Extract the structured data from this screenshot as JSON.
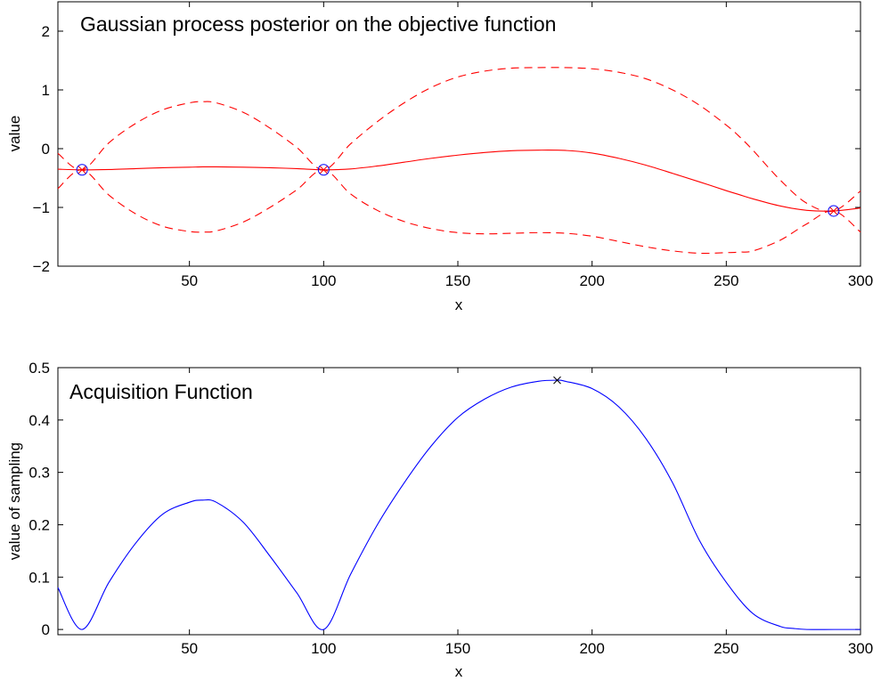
{
  "chart_data": [
    {
      "type": "line",
      "title": "Gaussian process posterior on the objective function",
      "xlabel": "x",
      "ylabel": "value",
      "xlim": [
        1,
        300
      ],
      "ylim": [
        -2,
        2.5
      ],
      "xticks": [
        50,
        100,
        150,
        200,
        250,
        300
      ],
      "yticks": [
        -2,
        -1,
        0,
        1,
        2
      ],
      "grid": false,
      "x": [
        1,
        10,
        20,
        30,
        40,
        50,
        55,
        60,
        70,
        80,
        90,
        100,
        110,
        120,
        130,
        140,
        150,
        160,
        170,
        180,
        190,
        200,
        210,
        220,
        230,
        240,
        250,
        255,
        260,
        270,
        280,
        290,
        300
      ],
      "series": [
        {
          "role": "mean",
          "style": "solid",
          "color": "#ff0000",
          "values": [
            -0.35,
            -0.36,
            -0.355,
            -0.34,
            -0.325,
            -0.315,
            -0.31,
            -0.31,
            -0.315,
            -0.325,
            -0.34,
            -0.36,
            -0.345,
            -0.295,
            -0.23,
            -0.165,
            -0.11,
            -0.065,
            -0.035,
            -0.025,
            -0.03,
            -0.075,
            -0.165,
            -0.28,
            -0.42,
            -0.565,
            -0.715,
            -0.785,
            -0.855,
            -0.975,
            -1.05,
            -1.06,
            -1.01
          ]
        },
        {
          "role": "upper-bound",
          "style": "dashed",
          "color": "#ff0000",
          "values": [
            -0.08,
            -0.36,
            0.1,
            0.43,
            0.66,
            0.78,
            0.8,
            0.78,
            0.62,
            0.35,
            0.02,
            -0.36,
            0.08,
            0.46,
            0.78,
            1.04,
            1.22,
            1.32,
            1.37,
            1.38,
            1.38,
            1.36,
            1.3,
            1.19,
            1.0,
            0.74,
            0.4,
            0.2,
            -0.03,
            -0.53,
            -0.93,
            -1.06,
            -0.72
          ]
        },
        {
          "role": "lower-bound",
          "style": "dashed",
          "color": "#ff0000",
          "values": [
            -0.68,
            -0.36,
            -0.79,
            -1.11,
            -1.32,
            -1.41,
            -1.42,
            -1.4,
            -1.25,
            -1.0,
            -0.7,
            -0.36,
            -0.77,
            -1.05,
            -1.24,
            -1.36,
            -1.43,
            -1.45,
            -1.44,
            -1.43,
            -1.44,
            -1.49,
            -1.58,
            -1.67,
            -1.74,
            -1.78,
            -1.77,
            -1.76,
            -1.74,
            -1.56,
            -1.28,
            -1.06,
            -1.42
          ]
        }
      ],
      "observations": {
        "x": [
          10,
          100,
          290
        ],
        "y": [
          -0.36,
          -0.36,
          -1.06
        ],
        "marker": "circle-cross"
      }
    },
    {
      "type": "line",
      "title": "Acquisition Function",
      "xlabel": "x",
      "ylabel": "value of sampling",
      "xlim": [
        1,
        300
      ],
      "ylim": [
        -0.01,
        0.5
      ],
      "xticks": [
        50,
        100,
        150,
        200,
        250,
        300
      ],
      "yticks": [
        0,
        0.1,
        0.2,
        0.3,
        0.4,
        0.5
      ],
      "ytick_labels": [
        "0",
        "0.1",
        "0.2",
        "0.3",
        "0.4",
        "0.5"
      ],
      "grid": false,
      "x": [
        1,
        10,
        20,
        30,
        40,
        50,
        55,
        60,
        70,
        80,
        90,
        100,
        110,
        120,
        130,
        140,
        150,
        160,
        170,
        180,
        187,
        190,
        200,
        210,
        220,
        230,
        240,
        250,
        260,
        270,
        275,
        280,
        290,
        300
      ],
      "series": [
        {
          "role": "acquisition",
          "style": "solid",
          "color": "#0000ff",
          "values": [
            0.08,
            0.0,
            0.09,
            0.165,
            0.22,
            0.243,
            0.247,
            0.243,
            0.205,
            0.14,
            0.07,
            0.0,
            0.105,
            0.2,
            0.28,
            0.35,
            0.405,
            0.44,
            0.463,
            0.474,
            0.476,
            0.474,
            0.46,
            0.425,
            0.365,
            0.28,
            0.17,
            0.09,
            0.03,
            0.006,
            0.002,
            0.0,
            0.0,
            0.0
          ]
        }
      ],
      "maximum": {
        "x": 187,
        "y": 0.476,
        "marker": "x"
      }
    }
  ]
}
